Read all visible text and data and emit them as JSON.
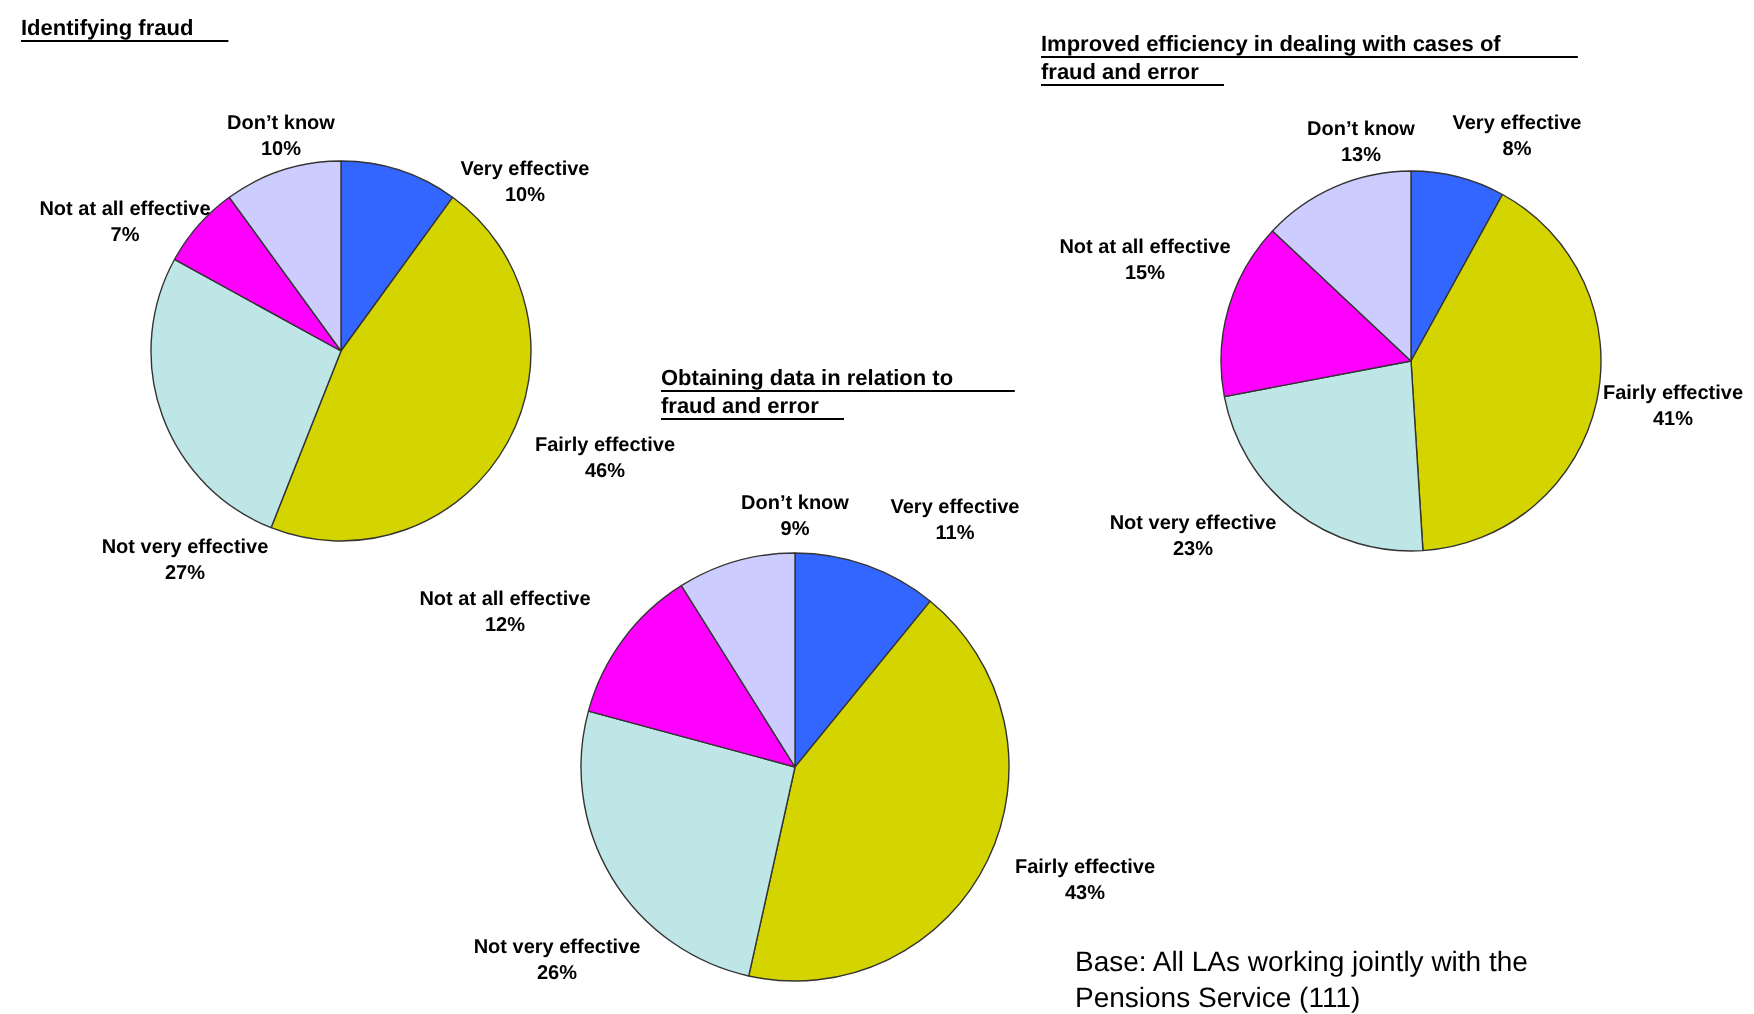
{
  "chart_data": [
    {
      "type": "pie",
      "title": "Identifying fraud",
      "categories": [
        "Very effective",
        "Fairly effective",
        "Not very effective",
        "Not at all effective",
        "Don’t know"
      ],
      "values": [
        10,
        46,
        27,
        7,
        10
      ],
      "value_labels": [
        "10%",
        "46%",
        "27%",
        "7%",
        "10%"
      ],
      "colors": [
        "#3366ff",
        "#d4d400",
        "#bfe6e6",
        "#ff00ff",
        "#ccccff"
      ]
    },
    {
      "type": "pie",
      "title": "Obtaining data in relation to fraud and error",
      "categories": [
        "Very effective",
        "Fairly effective",
        "Not very effective",
        "Not at all effective",
        "Don’t know"
      ],
      "values": [
        11,
        43,
        26,
        12,
        9
      ],
      "value_labels": [
        "11%",
        "43%",
        "26%",
        "12%",
        "9%"
      ],
      "colors": [
        "#3366ff",
        "#d4d400",
        "#bfe6e6",
        "#ff00ff",
        "#ccccff"
      ]
    },
    {
      "type": "pie",
      "title": "Improved efficiency in dealing with cases of fraud and error",
      "categories": [
        "Very effective",
        "Fairly effective",
        "Not very effective",
        "Not at all effective",
        "Don’t know"
      ],
      "values": [
        8,
        41,
        23,
        15,
        13
      ],
      "value_labels": [
        "8%",
        "41%",
        "23%",
        "15%",
        "13%"
      ],
      "colors": [
        "#3366ff",
        "#d4d400",
        "#bfe6e6",
        "#ff00ff",
        "#ccccff"
      ],
      "annotations": [
        "Base: All LAs working jointly with the Pensions Service (111)"
      ]
    }
  ]
}
